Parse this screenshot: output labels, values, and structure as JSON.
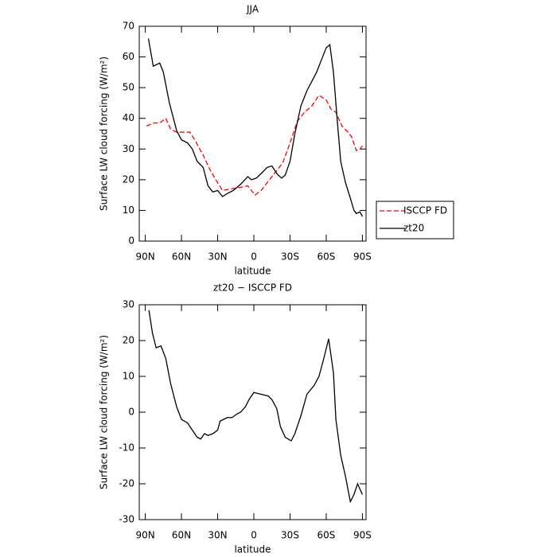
{
  "chart_data": [
    {
      "type": "line",
      "title": "JJA",
      "xlabel": "latitude",
      "ylabel": "Surface LW cloud forcing (W/m²)",
      "xlim": [
        95,
        -93
      ],
      "ylim": [
        0,
        70
      ],
      "xticks": [
        {
          "value": 90,
          "label": "90N"
        },
        {
          "value": 60,
          "label": "60N"
        },
        {
          "value": 30,
          "label": "30N"
        },
        0,
        {
          "value": -30,
          "label": "30S"
        },
        {
          "value": -60,
          "label": "60S"
        },
        {
          "value": -90,
          "label": "90S"
        }
      ],
      "yticks": [
        0,
        10,
        20,
        30,
        40,
        50,
        60,
        70
      ],
      "legend": "right",
      "series": [
        {
          "name": "ISCCP FD",
          "color": "#ff0000",
          "style": "dashed",
          "x": [
            89,
            83,
            78,
            73,
            69,
            64,
            53,
            49,
            42,
            36,
            30,
            26,
            19,
            11,
            5,
            -1,
            -6,
            -12,
            -17,
            -24,
            -30,
            -36,
            -42,
            -48,
            -54,
            -60,
            -64,
            -68,
            -73,
            -78,
            -81,
            -85,
            -88,
            -90
          ],
          "values": [
            37.5,
            38.5,
            38.5,
            40,
            36.5,
            35.5,
            35.5,
            33,
            28,
            23,
            19,
            16.5,
            17,
            17.5,
            18,
            15,
            16.5,
            19.5,
            22,
            25.5,
            32,
            39,
            42,
            44,
            47.5,
            46,
            43,
            42,
            37.5,
            35.5,
            34,
            29.5,
            30,
            31
          ]
        },
        {
          "name": "zt20",
          "color": "#000000",
          "style": "solid",
          "x": [
            87.4,
            83.4,
            78,
            75,
            70,
            64,
            60,
            55,
            51,
            47,
            42,
            38,
            34,
            30,
            26,
            22,
            17,
            11,
            5,
            2,
            -2,
            -6,
            -11,
            -15,
            -19,
            -23,
            -26,
            -30,
            -34,
            -39,
            -44,
            -48,
            -52,
            -56,
            -60,
            -63,
            -66,
            -69,
            -72,
            -76,
            -80,
            -83,
            -85,
            -88,
            -90
          ],
          "values": [
            66,
            57,
            58,
            55,
            45,
            36,
            33,
            32,
            30,
            26,
            24,
            18,
            16,
            16.5,
            14.5,
            15.5,
            16.5,
            18.5,
            21,
            20,
            20.5,
            22,
            24,
            24.5,
            22,
            20.5,
            21.5,
            26,
            35,
            44,
            49,
            52,
            55,
            59,
            63,
            64,
            55,
            40,
            26,
            19,
            14,
            10,
            9,
            9.5,
            8
          ]
        }
      ]
    },
    {
      "type": "line",
      "title": "zt20 − ISCCP FD",
      "xlabel": "latitude",
      "ylabel": "Surface LW cloud forcing (W/m²)",
      "xlim": [
        95,
        -93
      ],
      "ylim": [
        -30,
        30
      ],
      "xticks": [
        {
          "value": 90,
          "label": "90N"
        },
        {
          "value": 60,
          "label": "60N"
        },
        {
          "value": 30,
          "label": "30N"
        },
        0,
        {
          "value": -30,
          "label": "30S"
        },
        {
          "value": -60,
          "label": "60S"
        },
        {
          "value": -90,
          "label": "90S"
        }
      ],
      "yticks": [
        -30,
        -20,
        -10,
        0,
        10,
        20,
        30
      ],
      "series": [
        {
          "color": "#000000",
          "style": "solid",
          "x": [
            87,
            84,
            81,
            77,
            73,
            69,
            64,
            60,
            55,
            51,
            47,
            44,
            41,
            38,
            34,
            30,
            28,
            25,
            22,
            18,
            14,
            11,
            7,
            4,
            0,
            -6,
            -12,
            -15,
            -19,
            -22,
            -26,
            -31,
            -34,
            -39,
            -44,
            -50,
            -54,
            -58,
            -62,
            -66,
            -68,
            -72,
            -76,
            -80,
            -83,
            -86,
            -90
          ],
          "values": [
            28.5,
            22,
            18,
            18.5,
            15,
            8,
            1.5,
            -2,
            -3,
            -5,
            -7,
            -7.5,
            -6,
            -6.5,
            -6,
            -5,
            -2.5,
            -2,
            -1.5,
            -1.5,
            -0.5,
            0,
            1.5,
            3.5,
            5.5,
            5,
            4.5,
            3.5,
            1,
            -4,
            -7,
            -8,
            -6,
            -1,
            5,
            7.5,
            10,
            15,
            20.5,
            11,
            -2,
            -12,
            -18,
            -25,
            -23,
            -20,
            -23
          ]
        }
      ]
    }
  ]
}
